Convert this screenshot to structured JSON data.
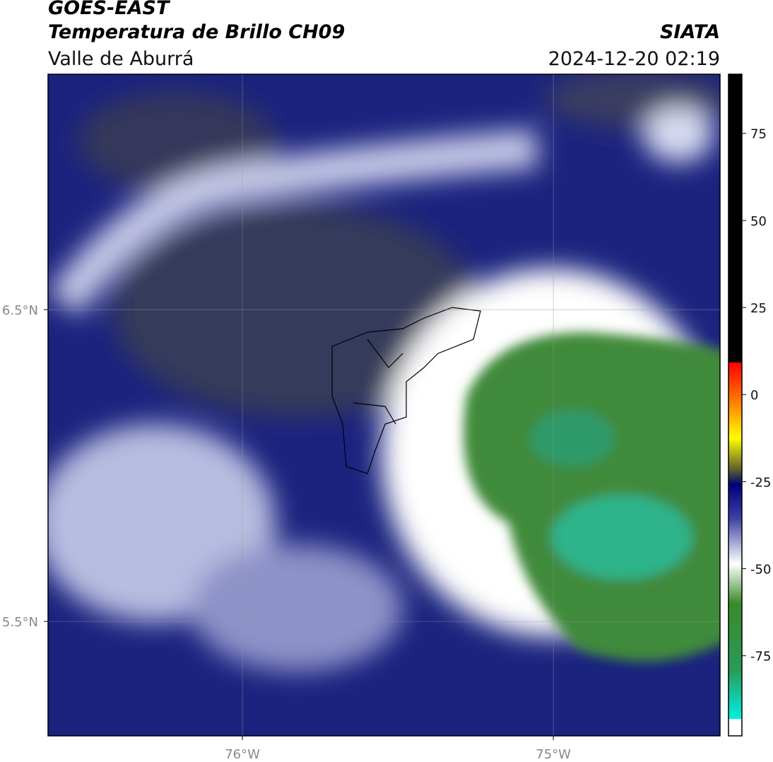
{
  "header": {
    "title": "GOES-EAST",
    "subtitle": "Temperatura de Brillo CH09",
    "region": "Valle de Aburrá",
    "source": "SIATA",
    "datetime": "2024-12-20 02:19"
  },
  "map": {
    "xlim": [
      -76.625,
      -74.464
    ],
    "ylim": [
      5.133,
      7.255
    ],
    "xticks": [
      {
        "value": -76,
        "label": "76°W"
      },
      {
        "value": -75,
        "label": "75°W"
      }
    ],
    "yticks": [
      {
        "value": 6.5,
        "label": "6.5°N"
      },
      {
        "value": 5.5,
        "label": "5.5°N"
      }
    ],
    "grid": true
  },
  "colorbar": {
    "lim": [
      -98,
      92
    ],
    "ticks": [
      75,
      50,
      25,
      0,
      -25,
      -50,
      -75
    ]
  }
}
